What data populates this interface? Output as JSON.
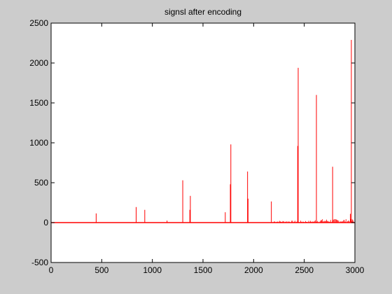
{
  "chart_data": {
    "type": "line",
    "title": "signsl after encoding",
    "xlabel": "",
    "ylabel": "",
    "xlim": [
      0,
      3000
    ],
    "ylim": [
      -500,
      2500
    ],
    "x_ticks": [
      0,
      500,
      1000,
      1500,
      2000,
      2500,
      3000
    ],
    "y_ticks": [
      -500,
      0,
      500,
      1000,
      1500,
      2000,
      2500
    ],
    "x_tick_labels": [
      "0",
      "500",
      "1000",
      "1500",
      "2000",
      "2500",
      "3000"
    ],
    "y_tick_labels": [
      "-500",
      "0",
      "500",
      "1000",
      "1500",
      "2000",
      "2500"
    ],
    "grid": false,
    "legend": "none",
    "series": [
      {
        "color": "#ff0000",
        "peaks": [
          {
            "x": 445,
            "y": 115
          },
          {
            "x": 840,
            "y": 195
          },
          {
            "x": 925,
            "y": 160
          },
          {
            "x": 1145,
            "y": 25
          },
          {
            "x": 1300,
            "y": 530
          },
          {
            "x": 1375,
            "y": 335
          },
          {
            "x": 1370,
            "y": 160
          },
          {
            "x": 1720,
            "y": 130
          },
          {
            "x": 1770,
            "y": 480
          },
          {
            "x": 1775,
            "y": 980
          },
          {
            "x": 1940,
            "y": 640
          },
          {
            "x": 1945,
            "y": 300
          },
          {
            "x": 2175,
            "y": 265
          },
          {
            "x": 2435,
            "y": 960
          },
          {
            "x": 2440,
            "y": 1940
          },
          {
            "x": 2620,
            "y": 1600
          },
          {
            "x": 2780,
            "y": 700
          },
          {
            "x": 2955,
            "y": 110
          },
          {
            "x": 2965,
            "y": 2290
          }
        ],
        "baseline": 0
      }
    ]
  }
}
